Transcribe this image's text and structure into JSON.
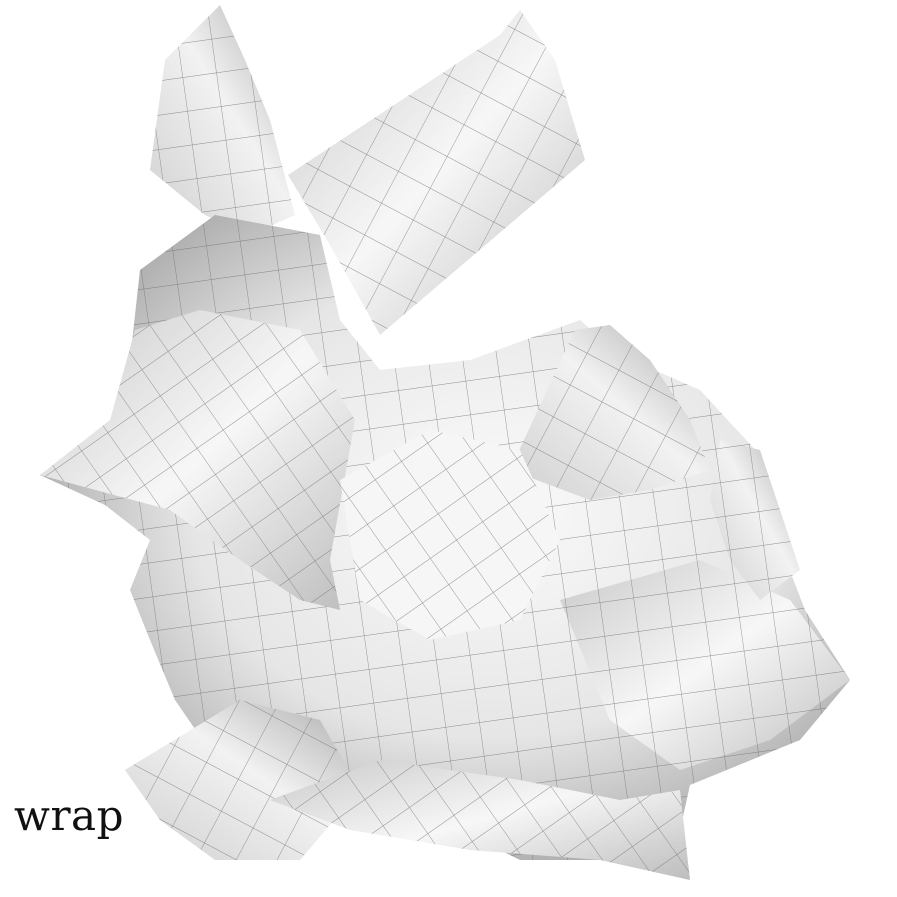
{
  "caption": "wrap",
  "colors": {
    "background": "#ffffff",
    "patch_light": "#f5f5f5",
    "patch_mid": "#d9d9d9",
    "patch_dark": "#a8a8a8",
    "grid_line": "#6b6b6b"
  },
  "subject": "bunny-mesh-icon"
}
